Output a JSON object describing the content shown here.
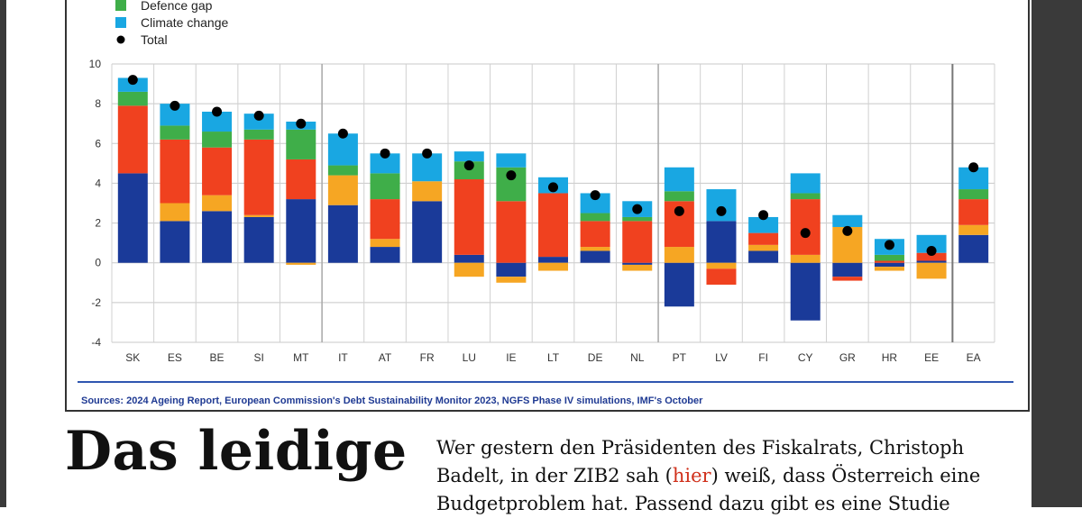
{
  "legend": [
    {
      "label": "Defence gap",
      "color": "#3fae49"
    },
    {
      "label": "Climate change",
      "color": "#19a7e2"
    },
    {
      "label": "Total",
      "color": "#000000"
    }
  ],
  "sources": "Sources: 2024 Ageing Report, European Commission's Debt Sustainability Monitor 2023, NGFS Phase IV simulations, IMF's October",
  "article": {
    "heading": "Das leidige",
    "para_before": "Wer gestern den Präsidenten des Fiskalrats, Christoph Badelt, in der ZIB2 sah (",
    "link": "hier",
    "para_after": ") weiß, dass Österreich eine Budgetproblem hat. Passend dazu gibt es eine Studie"
  },
  "chart_data": {
    "type": "bar",
    "stacked": true,
    "ylim": [
      -4,
      10
    ],
    "yticks": [
      10,
      8,
      6,
      4,
      2,
      0,
      -2,
      -4
    ],
    "categories": [
      "SK",
      "ES",
      "BE",
      "SI",
      "MT",
      "IT",
      "AT",
      "FR",
      "LU",
      "IE",
      "LT",
      "DE",
      "NL",
      "PT",
      "LV",
      "FI",
      "CY",
      "GR",
      "HR",
      "EE",
      "EA"
    ],
    "series": [
      {
        "name": "",
        "color": "#1a3a99",
        "values": [
          4.5,
          2.1,
          2.6,
          2.3,
          3.2,
          2.9,
          0.8,
          3.1,
          0.4,
          -0.7,
          0.3,
          0.6,
          -0.1,
          -2.2,
          2.1,
          0.6,
          -2.9,
          -0.7,
          -0.2,
          0.1,
          1.4
        ]
      },
      {
        "name": "",
        "color": "#f6a623",
        "values": [
          0,
          0.9,
          0.8,
          0.1,
          -0.1,
          1.5,
          0.4,
          1.0,
          -0.7,
          -0.3,
          -0.4,
          0.2,
          -0.3,
          0.8,
          -0.3,
          0.3,
          0.4,
          1.8,
          -0.2,
          -0.8,
          0.5
        ]
      },
      {
        "name": "",
        "color": "#f0411f",
        "values": [
          3.4,
          3.2,
          2.4,
          3.8,
          2.0,
          0,
          2.0,
          0,
          3.8,
          3.1,
          3.2,
          1.3,
          2.1,
          2.3,
          -0.8,
          0.6,
          2.8,
          -0.2,
          0.1,
          0.4,
          1.3
        ]
      },
      {
        "name": "Defence gap",
        "color": "#3fae49",
        "values": [
          0.7,
          0.7,
          0.8,
          0.5,
          1.5,
          0.5,
          1.3,
          0,
          0.9,
          1.7,
          0,
          0.4,
          0.2,
          0.5,
          0,
          0,
          0.3,
          0,
          0.3,
          0,
          0.5
        ]
      },
      {
        "name": "Climate change",
        "color": "#19a7e2",
        "values": [
          0.7,
          1.1,
          1.0,
          0.8,
          0.4,
          1.6,
          1.0,
          1.4,
          0.5,
          0.7,
          0.8,
          1.0,
          0.8,
          1.2,
          1.6,
          0.8,
          1.0,
          0.6,
          0.8,
          0.9,
          1.1
        ]
      }
    ],
    "total": {
      "name": "Total",
      "values": [
        9.2,
        7.9,
        7.6,
        7.4,
        7.0,
        6.5,
        5.5,
        5.5,
        4.9,
        4.4,
        3.8,
        3.4,
        2.7,
        2.6,
        2.6,
        2.4,
        1.5,
        1.6,
        0.9,
        0.6,
        4.8
      ]
    }
  }
}
